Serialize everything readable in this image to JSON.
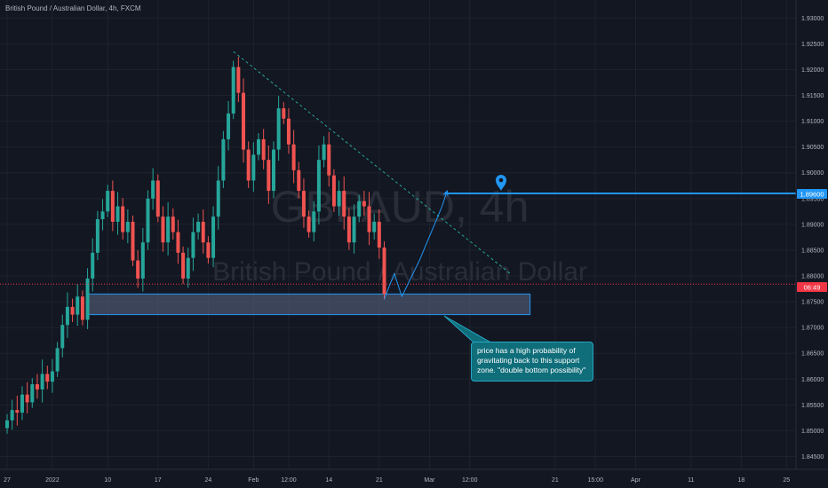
{
  "header": {
    "title": "British Pound / Australian Dollar, 4h, FXCM"
  },
  "watermark": {
    "symbol": "GBPAUD, 4h",
    "name": "British Pound / Australian Dollar"
  },
  "annotation": {
    "text": "price has a high probability of gravitating back to this support zone. \"double bottom possibility\""
  },
  "price_labels": {
    "target": "1.89600",
    "countdown": "06:49"
  },
  "colors": {
    "background": "#131722",
    "up": "#26a69a",
    "down": "#ef5350",
    "accent": "#2196f3",
    "trendline": "#26a69a",
    "zone_fill": "#5d6a85",
    "current_price": "#f23645"
  },
  "icons": {
    "target_marker": "map-pin-icon"
  },
  "chart_data": {
    "type": "candlestick",
    "y_axis": {
      "position": "right",
      "ylim": [
        1.8425,
        1.9335
      ],
      "ticks": [
        1.93,
        1.925,
        1.92,
        1.915,
        1.91,
        1.905,
        1.9,
        1.895,
        1.89,
        1.885,
        1.88,
        1.875,
        1.87,
        1.865,
        1.86,
        1.855,
        1.85,
        1.845
      ],
      "tick_labels": [
        "1.93000",
        "1.92500",
        "1.92000",
        "1.91500",
        "1.91000",
        "1.90500",
        "1.90000",
        "1.89500",
        "1.89000",
        "1.88500",
        "1.88000",
        "1.87500",
        "1.87000",
        "1.86500",
        "1.86000",
        "1.85500",
        "1.85000",
        "1.84500"
      ]
    },
    "x_axis": {
      "ticks": [
        {
          "label": "27",
          "x": 0
        },
        {
          "label": "2022",
          "x": 9
        },
        {
          "label": "10",
          "x": 20
        },
        {
          "label": "17",
          "x": 30
        },
        {
          "label": "24",
          "x": 40
        },
        {
          "label": "Feb",
          "x": 49
        },
        {
          "label": "12:00",
          "x": 56
        },
        {
          "label": "14",
          "x": 64
        },
        {
          "label": "21",
          "x": 74
        },
        {
          "label": "Mar",
          "x": 84
        },
        {
          "label": "12:00",
          "x": 92
        },
        {
          "label": "21",
          "x": 109
        },
        {
          "label": "15:00",
          "x": 117
        },
        {
          "label": "Apr",
          "x": 125
        },
        {
          "label": "11",
          "x": 136
        },
        {
          "label": "18",
          "x": 146
        },
        {
          "label": "25",
          "x": 155
        }
      ]
    },
    "candles_close": [
      1.852,
      1.854,
      1.8535,
      1.857,
      1.8555,
      1.859,
      1.858,
      1.861,
      1.8595,
      1.8615,
      1.866,
      1.8705,
      1.874,
      1.8725,
      1.876,
      1.8715,
      1.8795,
      1.8845,
      1.891,
      1.8925,
      1.8965,
      1.8905,
      1.8935,
      1.8885,
      1.8905,
      1.883,
      1.8795,
      1.8865,
      1.895,
      1.8985,
      1.8915,
      1.8865,
      1.8915,
      1.8885,
      1.8845,
      1.8795,
      1.8835,
      1.8885,
      1.8905,
      1.8865,
      1.8835,
      1.8915,
      1.8985,
      1.9065,
      1.9115,
      1.9205,
      1.9155,
      1.9045,
      1.8985,
      1.9035,
      1.9065,
      1.9025,
      1.8965,
      1.9045,
      1.9125,
      1.9105,
      1.9055,
      1.9005,
      1.8965,
      1.8915,
      1.8885,
      1.8925,
      1.9025,
      1.9055,
      1.8995,
      1.8935,
      1.8965,
      1.8915,
      1.8865,
      1.8915,
      1.8945,
      1.8935,
      1.8885,
      1.8905,
      1.8855,
      1.8765
    ],
    "support_zone": {
      "x_start": 16,
      "x_end": 104,
      "y_low": 1.8725,
      "y_high": 1.8765
    },
    "resistance_level": {
      "value": 1.896,
      "x_start": 87
    },
    "current_price": 1.8784,
    "descending_trendline": {
      "x1": 45,
      "y1": 1.9235,
      "x2": 100,
      "y2": 1.8805
    },
    "projection_path": [
      [
        75,
        1.8755
      ],
      [
        77,
        1.8805
      ],
      [
        78.5,
        1.876
      ],
      [
        82,
        1.883
      ],
      [
        86.5,
        1.8935
      ],
      [
        87.5,
        1.8965
      ]
    ]
  }
}
